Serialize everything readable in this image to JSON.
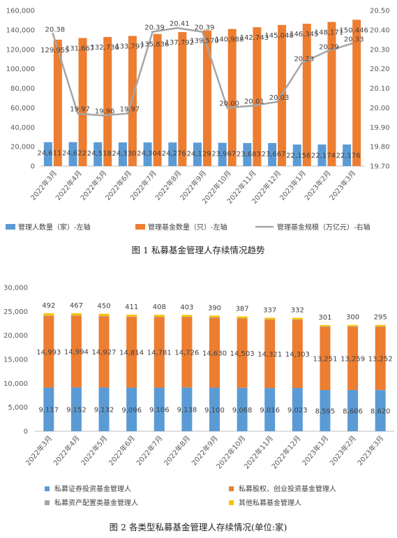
{
  "colors": {
    "blue": "#5B9BD5",
    "orange": "#ED7D31",
    "gray": "#A5A5A5",
    "yellow": "#FFC000"
  },
  "chart_data": [
    {
      "type": "bar",
      "caption": "图 1 私募基金管理人存续情况趋势",
      "categories": [
        "2022年3月",
        "2022年4月",
        "2022年5月",
        "2022年6月",
        "2022年7月",
        "2022年8月",
        "2022年9月",
        "2022年10月",
        "2022年11月",
        "2022年12月",
        "2023年1月",
        "2023年2月",
        "2023年3月"
      ],
      "ylim_left": [
        0,
        160000
      ],
      "yticks_left": [
        "0",
        "20,000",
        "40,000",
        "60,000",
        "80,000",
        "100,000",
        "120,000",
        "140,000",
        "160,000"
      ],
      "ylim_right": [
        19.7,
        20.5
      ],
      "yticks_right": [
        "19.70",
        "19.80",
        "19.90",
        "20.00",
        "20.10",
        "20.20",
        "20.30",
        "20.40",
        "20.50"
      ],
      "grid": false,
      "legend_position": "bottom",
      "series": [
        {
          "name": "管理人数量（家）-左轴",
          "kind": "bar",
          "axis": "left",
          "values": [
            24611,
            24622,
            24518,
            24330,
            24304,
            24276,
            24129,
            23967,
            23683,
            23667,
            22156,
            22174,
            22176
          ],
          "labels": [
            "24,611",
            "24,622",
            "24,518",
            "24,330",
            "24,304",
            "24,276",
            "24,129",
            "23,967",
            "23,683",
            "23,667",
            "22,156",
            "22,174",
            "22,176"
          ]
        },
        {
          "name": "管理基金数量（只）-左轴",
          "kind": "bar",
          "axis": "left",
          "values": [
            129955,
            131667,
            132736,
            133797,
            135836,
            137792,
            139570,
            140988,
            142743,
            145048,
            146345,
            148171,
            150446
          ],
          "labels": [
            "129,955",
            "131,667",
            "132,736",
            "133,797",
            "135,836",
            "137,792",
            "139,570",
            "140,988",
            "142,743",
            "145,048",
            "146,345",
            "148,171",
            "150,446"
          ]
        },
        {
          "name": "管理基金规模（万亿元）-右轴",
          "kind": "line",
          "axis": "right",
          "values": [
            20.38,
            19.97,
            19.96,
            19.97,
            20.39,
            20.41,
            20.39,
            20.0,
            20.01,
            20.03,
            20.23,
            20.29,
            20.33
          ],
          "labels": [
            "20.38",
            "19.97",
            "19.96",
            "19.97",
            "20.39",
            "20.41",
            "20.39",
            "20.00",
            "20.01",
            "20.03",
            "20.23",
            "20.29",
            "20.33"
          ]
        }
      ]
    },
    {
      "type": "bar",
      "stacked": true,
      "caption": "图 2 各类型私募基金管理人存续情况(单位:家)",
      "categories": [
        "2022年3月",
        "2022年4月",
        "2022年5月",
        "2022年6月",
        "2022年7月",
        "2022年8月",
        "2022年9月",
        "2022年10月",
        "2022年11月",
        "2022年12月",
        "2023年1月",
        "2023年2月",
        "2023年3月"
      ],
      "ylim": [
        0,
        30000
      ],
      "yticks": [
        "0",
        "5,000",
        "10,000",
        "15,000",
        "20,000",
        "25,000",
        "30,000"
      ],
      "grid": false,
      "legend_position": "bottom",
      "series": [
        {
          "name": "私募证券投资基金管理人",
          "values": [
            9117,
            9152,
            9132,
            9096,
            9106,
            9138,
            9100,
            9068,
            9016,
            9023,
            8595,
            8606,
            8620
          ],
          "labels": [
            "9,117",
            "9,152",
            "9,132",
            "9,096",
            "9,106",
            "9,138",
            "9,100",
            "9,068",
            "9,016",
            "9,023",
            "8,595",
            "8,606",
            "8,620"
          ]
        },
        {
          "name": "私募股权、创业投资基金管理人",
          "values": [
            14993,
            14994,
            14927,
            14814,
            14781,
            14726,
            14630,
            14503,
            14321,
            14303,
            13251,
            13259,
            13252
          ],
          "labels": [
            "14,993",
            "14,994",
            "14,927",
            "14,814",
            "14,781",
            "14,726",
            "14,630",
            "14,503",
            "14,321",
            "14,303",
            "13,251",
            "13,259",
            "13,252"
          ]
        },
        {
          "name": "私募资产配置类基金管理人",
          "values": [
            9,
            9,
            9,
            9,
            9,
            9,
            9,
            9,
            9,
            9,
            9,
            9,
            9
          ],
          "labels": []
        },
        {
          "name": "其他私募基金管理人",
          "values": [
            492,
            467,
            450,
            411,
            408,
            403,
            390,
            387,
            337,
            332,
            301,
            300,
            295
          ],
          "labels": [
            "492",
            "467",
            "450",
            "411",
            "408",
            "403",
            "390",
            "387",
            "337",
            "332",
            "301",
            "300",
            "295"
          ]
        }
      ]
    }
  ]
}
